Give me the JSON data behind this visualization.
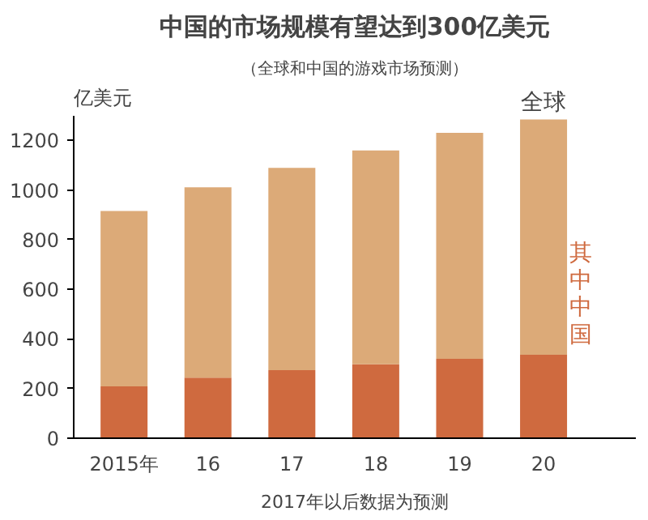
{
  "chart_data": {
    "type": "bar",
    "title": "中国的市场规模有望达到300亿美元",
    "subtitle": "（全球和中国的游戏市场预测）",
    "ylabel": "亿美元",
    "categories": [
      "2015年",
      "16",
      "17",
      "18",
      "19",
      "20"
    ],
    "stacked": true,
    "series": [
      {
        "name": "其中中国",
        "color": "#cf6a3f",
        "values": [
          209,
          244,
          274,
          298,
          320,
          336
        ]
      },
      {
        "name": "全球",
        "color": "#dcaa78",
        "values": [
          707,
          767,
          816,
          862,
          911,
          949
        ]
      }
    ],
    "ylim": [
      0,
      1300
    ],
    "yticks": [
      0,
      200,
      400,
      600,
      800,
      1000,
      1200
    ],
    "grid": false,
    "annotations": [
      "2017年以后数据为预测"
    ]
  }
}
